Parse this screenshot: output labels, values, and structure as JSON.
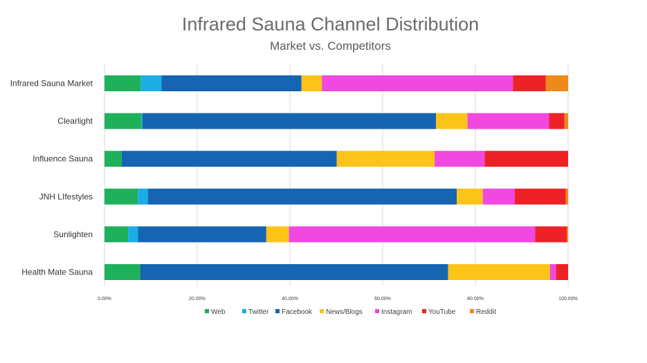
{
  "title": "Infrared Sauna Channel Distribution",
  "subtitle": "Market vs. Competitors",
  "chart_data": {
    "type": "bar",
    "orientation": "horizontal",
    "stacked": true,
    "title": "Infrared Sauna Channel Distribution",
    "subtitle": "Market vs. Competitors",
    "categories": [
      "Infrared Sauna Market",
      "Clearlight",
      "Influence Sauna",
      "JNH LIfestyles",
      "Sunlighten",
      "Health Mate Sauna"
    ],
    "series": [
      {
        "name": "Web",
        "color": "#1fb05c",
        "values": [
          7.8,
          8.0,
          3.7,
          7.2,
          5.1,
          7.7
        ]
      },
      {
        "name": "Twitter",
        "color": "#1aaee4",
        "values": [
          4.5,
          0.2,
          0.0,
          2.2,
          2.1,
          0.0
        ]
      },
      {
        "name": "Facebook",
        "color": "#1565b2",
        "values": [
          30.2,
          63.3,
          46.4,
          66.6,
          27.7,
          66.4
        ]
      },
      {
        "name": "News/Blogs",
        "color": "#fcc419",
        "values": [
          4.4,
          6.8,
          21.1,
          5.6,
          4.9,
          22.0
        ]
      },
      {
        "name": "Instagram",
        "color": "#f048e0",
        "values": [
          41.2,
          17.6,
          10.8,
          6.9,
          53.1,
          1.3
        ]
      },
      {
        "name": "YouTube",
        "color": "#ed2227",
        "values": [
          7.1,
          3.3,
          18.0,
          11.0,
          6.8,
          2.6
        ]
      },
      {
        "name": "Reddit",
        "color": "#f0891c",
        "values": [
          4.8,
          0.8,
          0.0,
          0.5,
          0.3,
          0.0
        ]
      }
    ],
    "xlim": [
      0,
      100
    ],
    "xticks": [
      "0.00%",
      "20.00%",
      "40.00%",
      "60.00%",
      "80.00%",
      "100.00%"
    ],
    "grid": true,
    "legend": "bottom"
  }
}
